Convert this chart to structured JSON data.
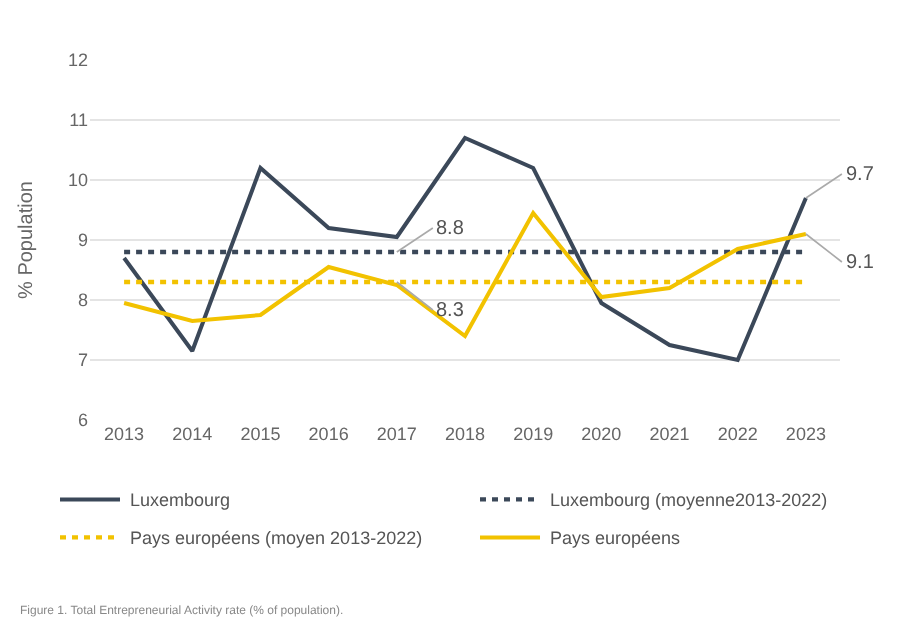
{
  "chart_data": {
    "type": "line",
    "ylabel": "% Population",
    "categories": [
      "2013",
      "2014",
      "2015",
      "2016",
      "2017",
      "2018",
      "2019",
      "2020",
      "2021",
      "2022",
      "2023"
    ],
    "series": [
      {
        "name": "Luxembourg",
        "color": "#3b4859",
        "values": [
          8.7,
          7.15,
          10.2,
          9.2,
          9.05,
          10.7,
          10.2,
          7.95,
          7.25,
          7.0,
          9.7
        ]
      },
      {
        "name": "Luxembourg (moyenne2013-2022)",
        "color": "#3b4859",
        "line_style": "dotted",
        "values": [
          8.8,
          8.8,
          8.8,
          8.8,
          8.8,
          8.8,
          8.8,
          8.8,
          8.8,
          8.8,
          8.8
        ]
      },
      {
        "name": "Pays européens (moyen 2013-2022)",
        "color": "#f2c200",
        "line_style": "dotted",
        "values": [
          8.3,
          8.3,
          8.3,
          8.3,
          8.3,
          8.3,
          8.3,
          8.3,
          8.3,
          8.3,
          8.3
        ]
      },
      {
        "name": "Pays européens",
        "color": "#f2c200",
        "values": [
          7.95,
          7.65,
          7.75,
          8.55,
          8.25,
          7.4,
          9.45,
          8.05,
          8.2,
          8.85,
          9.1
        ]
      }
    ],
    "ylim": [
      6,
      12
    ],
    "yticks": [
      6,
      7,
      8,
      9,
      10,
      11,
      12
    ],
    "grid": "y",
    "legend": "bottom",
    "marker": "none",
    "line_style": "solid",
    "annotations": [
      {
        "text": "8.8",
        "x": "2017",
        "y": 8.8
      },
      {
        "text": "8.3",
        "x": "2017",
        "y": 8.3
      },
      {
        "text": "9.7",
        "x": "2023",
        "y": 9.7
      },
      {
        "text": "9.1",
        "x": "2023",
        "y": 9.1
      },
      "Figure 1. Total Entrepreneurial Activity rate (% of population)."
    ]
  }
}
